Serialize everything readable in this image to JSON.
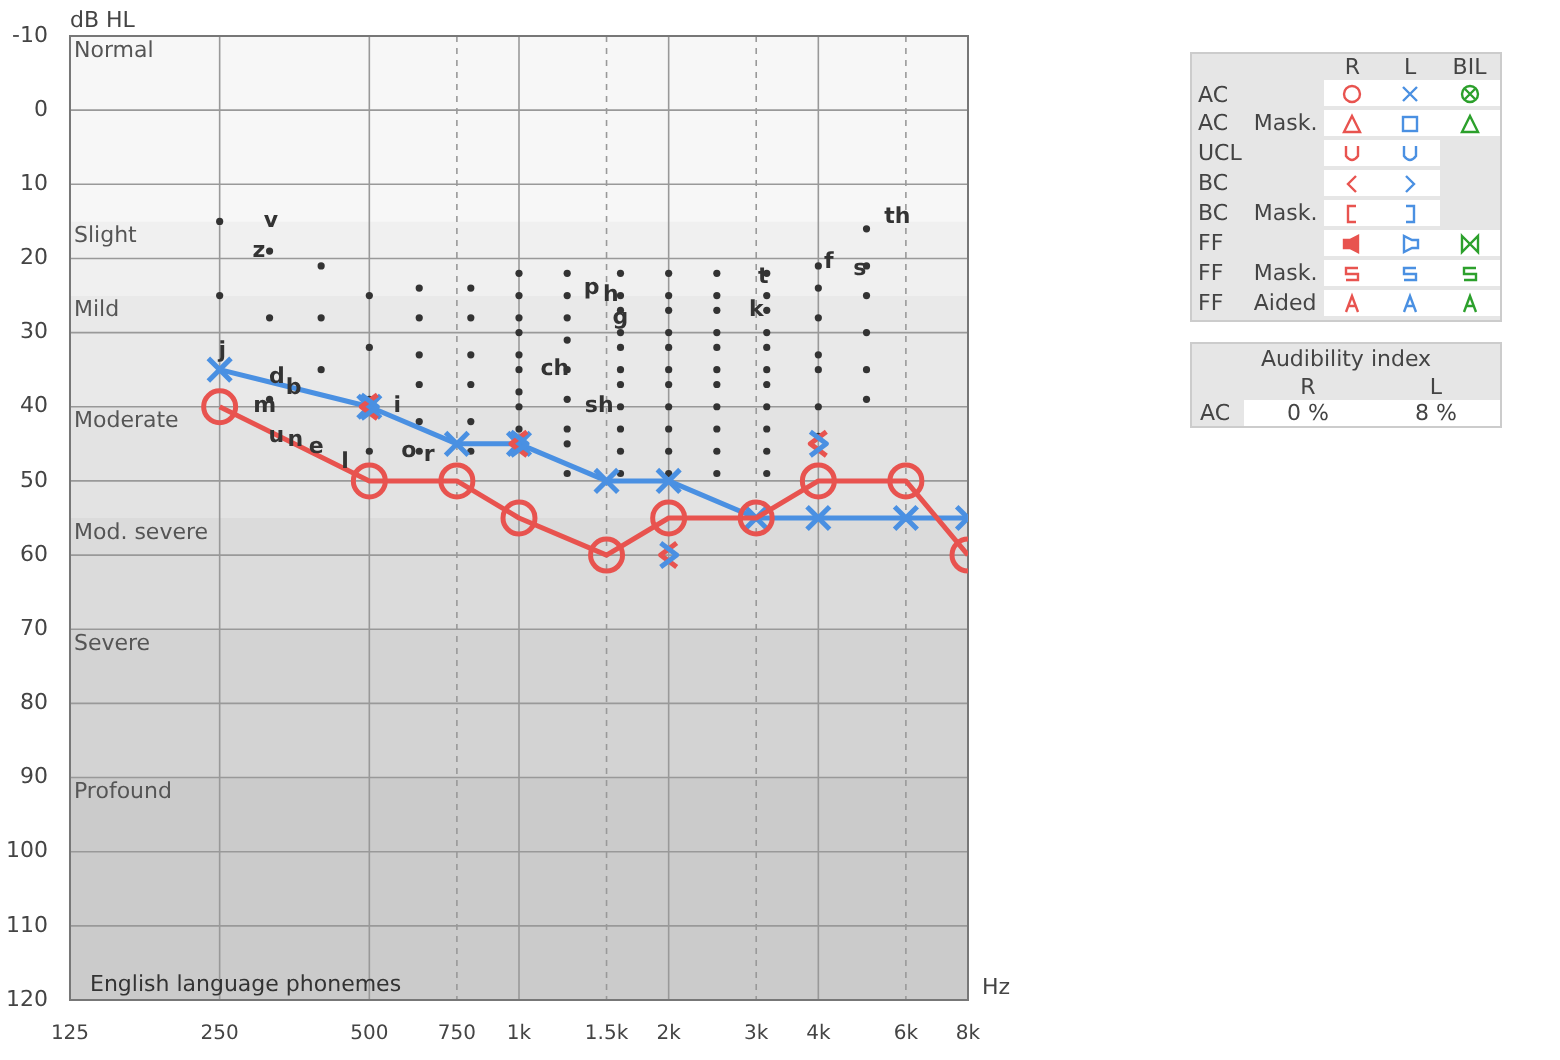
{
  "chart_data": {
    "type": "line",
    "xlabel": "Hz",
    "ylabel": "dB HL",
    "log": "x",
    "xlim": [
      125,
      8000
    ],
    "ylim": [
      120,
      -10
    ],
    "xticks": [
      125,
      250,
      500,
      750,
      {
        "value": 1000,
        "label": "1k"
      },
      {
        "value": 1500,
        "label": "1.5k"
      },
      {
        "value": 2000,
        "label": "2k"
      },
      {
        "value": 3000,
        "label": "3k"
      },
      {
        "value": 4000,
        "label": "4k"
      },
      {
        "value": 6000,
        "label": "6k"
      },
      {
        "value": 8000,
        "label": "8k"
      }
    ],
    "yticks": [
      -10,
      0,
      10,
      20,
      30,
      40,
      50,
      60,
      70,
      80,
      90,
      100,
      110,
      120
    ],
    "grid": true,
    "legend": false,
    "bands": [
      {
        "axis": "y",
        "from": -10,
        "to": 15,
        "label": "Normal",
        "color": "#f7f7f7"
      },
      {
        "axis": "y",
        "from": 15,
        "to": 25,
        "label": "Slight",
        "color": "#f0f0f0"
      },
      {
        "axis": "y",
        "from": 25,
        "to": 40,
        "label": "Mild",
        "color": "#e9e9e9"
      },
      {
        "axis": "y",
        "from": 40,
        "to": 55,
        "label": "Moderate",
        "color": "#e3e3e3"
      },
      {
        "axis": "y",
        "from": 55,
        "to": 70,
        "label": "Mod. severe",
        "color": "#dbdbdb"
      },
      {
        "axis": "y",
        "from": 70,
        "to": 90,
        "label": "Severe",
        "color": "#d3d3d3"
      },
      {
        "axis": "y",
        "from": 90,
        "to": 120,
        "label": "Profound",
        "color": "#cbcbcb"
      }
    ],
    "series": [
      {
        "type": "scatter",
        "color": "#333333",
        "marker": "circle",
        "x": [
          250,
          250,
          315,
          315,
          315,
          400,
          400,
          400,
          500,
          500,
          500,
          500,
          630,
          630,
          630,
          630,
          630,
          630,
          800,
          800,
          800,
          800,
          800,
          800,
          1000,
          1000,
          1000,
          1000,
          1000,
          1000,
          1000,
          1000,
          1000,
          1250,
          1250,
          1250,
          1250,
          1250,
          1250,
          1250,
          1250,
          1250,
          1600,
          1600,
          1600,
          1600,
          1600,
          1600,
          1600,
          1600,
          1600,
          1600,
          1600,
          2000,
          2000,
          2000,
          2000,
          2000,
          2000,
          2000,
          2000,
          2000,
          2000,
          2000,
          2500,
          2500,
          2500,
          2500,
          2500,
          2500,
          2500,
          2500,
          2500,
          2500,
          2500,
          3150,
          3150,
          3150,
          3150,
          3150,
          3150,
          3150,
          3150,
          3150,
          3150,
          3150,
          4000,
          4000,
          4000,
          4000,
          4000,
          4000,
          4000,
          5000,
          5000,
          5000,
          5000,
          5000,
          5000
        ],
        "values": [
          15,
          25,
          19,
          28,
          39,
          21,
          28,
          35,
          25,
          32,
          39,
          46,
          24,
          28,
          33,
          37,
          42,
          46,
          24,
          28,
          33,
          37,
          42,
          46,
          22,
          25,
          28,
          30,
          33,
          35,
          38,
          40,
          43,
          22,
          25,
          28,
          31,
          35,
          39,
          43,
          45,
          49,
          22,
          25,
          27,
          30,
          32,
          35,
          37,
          40,
          43,
          46,
          49,
          22,
          25,
          27,
          30,
          32,
          35,
          37,
          40,
          43,
          46,
          49,
          22,
          25,
          27,
          30,
          32,
          35,
          37,
          40,
          43,
          46,
          49,
          22,
          25,
          27,
          30,
          32,
          35,
          37,
          40,
          43,
          46,
          49,
          21,
          24,
          28,
          33,
          35,
          40,
          44,
          16,
          21,
          25,
          30,
          35,
          39
        ]
      },
      {
        "color": "#e8534f",
        "marker": "circle",
        "line_style": "solid",
        "x": [
          250,
          500,
          750,
          1000,
          1500,
          2000,
          3000,
          4000,
          6000,
          8000
        ],
        "values": [
          40,
          50,
          50,
          55,
          60,
          55,
          55,
          50,
          50,
          60
        ]
      },
      {
        "color": "#4a90e2",
        "marker": "cross",
        "line_style": "solid",
        "x": [
          250,
          500,
          750,
          1000,
          1500,
          2000,
          3000,
          4000,
          6000,
          8000
        ],
        "values": [
          35,
          40,
          45,
          45,
          50,
          50,
          55,
          55,
          55,
          55
        ]
      },
      {
        "type": "scatter",
        "color": "#e8534f",
        "x": [
          500,
          1000,
          2000,
          4000
        ],
        "values": [
          40,
          45,
          60,
          45
        ]
      },
      {
        "type": "scatter",
        "color": "#4a90e2",
        "x": [
          500,
          1000,
          2000,
          4000
        ],
        "values": [
          40,
          45,
          60,
          45
        ]
      }
    ],
    "annotations": [
      "English language phonemes",
      "R",
      "L",
      "BIL",
      "AC",
      "AC",
      "Mask.",
      "UCL",
      "BC",
      "BC",
      "Mask.",
      "FF",
      "FF",
      "Mask.",
      "FF",
      "Aided",
      "Audibility index",
      "R",
      "L",
      "AC",
      "0 %",
      "8 %",
      {
        "text": "v",
        "x": 317,
        "y": 15
      },
      {
        "text": "z",
        "x": 300,
        "y": 19
      },
      {
        "text": "j",
        "x": 253,
        "y": 32.5
      },
      {
        "text": "d",
        "x": 326,
        "y": 36
      },
      {
        "text": "b",
        "x": 352,
        "y": 37.5
      },
      {
        "text": "m",
        "x": 308,
        "y": 40
      },
      {
        "text": "n",
        "x": 355,
        "y": 44.5
      },
      {
        "text": "u",
        "x": 325,
        "y": 44
      },
      {
        "text": "e",
        "x": 391,
        "y": 45.5
      },
      {
        "text": "l",
        "x": 447,
        "y": 47.5
      },
      {
        "text": "i",
        "x": 569,
        "y": 40
      },
      {
        "text": "o",
        "x": 600,
        "y": 46
      },
      {
        "text": "r",
        "x": 660,
        "y": 46.5
      },
      {
        "text": "ch",
        "x": 1181,
        "y": 35
      },
      {
        "text": "p",
        "x": 1400,
        "y": 24
      },
      {
        "text": "h",
        "x": 1530,
        "y": 25
      },
      {
        "text": "g",
        "x": 1600,
        "y": 28
      },
      {
        "text": "sh",
        "x": 1450,
        "y": 40
      },
      {
        "text": "k",
        "x": 3000,
        "y": 27
      },
      {
        "text": "t",
        "x": 3100,
        "y": 22.5
      },
      {
        "text": "f",
        "x": 4200,
        "y": 20.5
      },
      {
        "text": "s",
        "x": 4850,
        "y": 21.5
      },
      {
        "text": "th",
        "x": 5770,
        "y": 14.5
      }
    ]
  }
}
